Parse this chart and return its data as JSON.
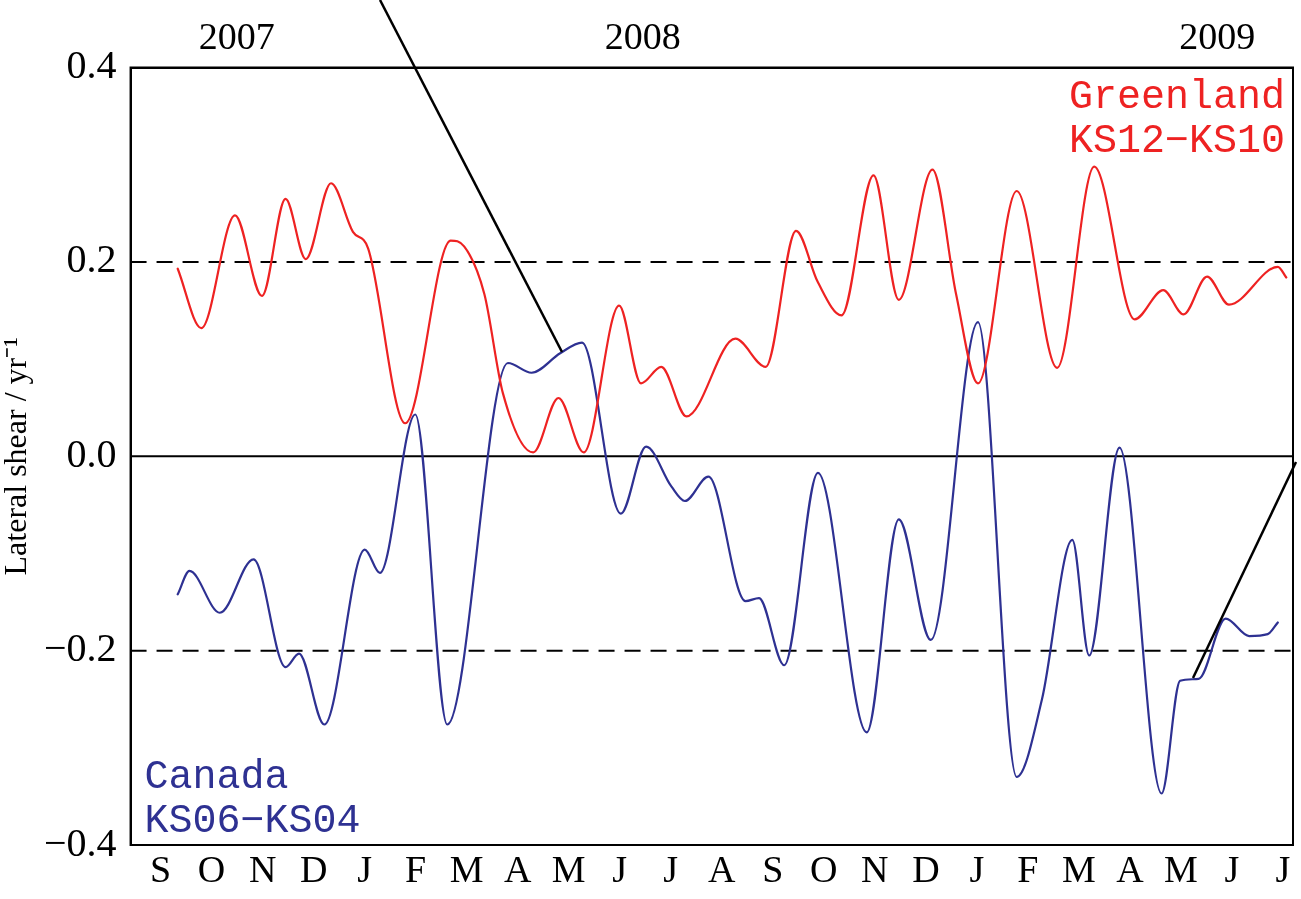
{
  "chart_data": {
    "type": "line",
    "ylabel": "Lateral shear / yr⁻¹",
    "legend": false,
    "grid": false,
    "line_style": "solid",
    "marker": "none",
    "xlim": [
      "2007-08-28",
      "2009-07-18"
    ],
    "ylim": [
      -0.4,
      0.4
    ],
    "yticks": [
      {
        "value": 0.4,
        "label": "0.4"
      },
      {
        "value": 0.2,
        "label": "0.2"
      },
      {
        "value": 0,
        "label": "0.0"
      },
      {
        "value": -0.2,
        "label": "−0.2"
      },
      {
        "value": -0.4,
        "label": "−0.4"
      }
    ],
    "xticks": [
      {
        "value": "2007-10-30",
        "label": "2007"
      },
      {
        "value": "2008-06-27",
        "label": "2008"
      },
      {
        "value": "2009-06-03",
        "label": "2009"
      }
    ],
    "annotations": [
      "S",
      "O",
      "N",
      "D",
      "J",
      "F",
      "M",
      "A",
      "M",
      "J",
      "J",
      "A",
      "S",
      "O",
      "N",
      "D",
      "J",
      "F",
      "M",
      "A",
      "M",
      "J",
      "J"
    ],
    "ref_lines": [
      {
        "axis": "y",
        "value": 0.2,
        "line_style": "dashed",
        "color": "#000000"
      },
      {
        "axis": "y",
        "value": 0,
        "line_style": "solid",
        "color": "#000000"
      },
      {
        "axis": "y",
        "value": -0.2,
        "line_style": "dashed",
        "color": "#000000"
      }
    ],
    "series": [
      {
        "name": "Greenland KS12−KS10",
        "color": "#ee2222",
        "x": [
          "2007-09-25",
          "2007-10-09",
          "2007-10-29",
          "2007-11-14",
          "2007-11-28",
          "2007-12-10",
          "2007-12-25",
          "2008-01-07",
          "2008-01-16",
          "2008-02-07",
          "2008-03-05",
          "2008-03-13",
          "2008-03-25",
          "2008-04-05",
          "2008-04-23",
          "2008-05-08",
          "2008-05-23",
          "2008-06-13",
          "2008-06-26",
          "2008-07-08",
          "2008-07-23",
          "2008-08-21",
          "2008-09-08",
          "2008-09-26",
          "2008-10-09",
          "2008-10-23",
          "2008-11-11",
          "2008-11-26",
          "2008-12-16",
          "2008-12-30",
          "2009-01-12",
          "2009-02-04",
          "2009-02-28",
          "2009-03-22",
          "2009-04-15",
          "2009-05-02",
          "2009-05-14",
          "2009-05-28",
          "2009-06-10",
          "2009-07-09",
          "2009-07-14"
        ],
        "values": [
          0.193,
          0.132,
          0.248,
          0.165,
          0.265,
          0.203,
          0.281,
          0.231,
          0.214,
          0.034,
          0.222,
          0.216,
          0.167,
          0.065,
          0.004,
          0.06,
          0.004,
          0.155,
          0.075,
          0.092,
          0.041,
          0.121,
          0.092,
          0.232,
          0.179,
          0.145,
          0.289,
          0.161,
          0.295,
          0.167,
          0.075,
          0.273,
          0.091,
          0.298,
          0.141,
          0.171,
          0.146,
          0.185,
          0.156,
          0.195,
          0.184
        ]
      },
      {
        "name": "Canada KS06−KS04",
        "color": "#2e3192",
        "x": [
          "2007-09-25",
          "2007-10-02",
          "2007-10-20",
          "2007-11-09",
          "2007-11-28",
          "2007-12-06",
          "2007-12-21",
          "2008-01-14",
          "2008-01-23",
          "2008-02-13",
          "2008-03-03",
          "2008-04-08",
          "2008-04-22",
          "2008-05-09",
          "2008-05-22",
          "2008-06-14",
          "2008-06-29",
          "2008-07-14",
          "2008-07-22",
          "2008-08-05",
          "2008-08-27",
          "2008-09-04",
          "2008-09-19",
          "2008-10-09",
          "2008-11-07",
          "2008-11-26",
          "2008-12-15",
          "2009-01-12",
          "2009-02-04",
          "2009-02-19",
          "2009-03-09",
          "2009-03-19",
          "2009-04-06",
          "2009-05-01",
          "2009-05-12",
          "2009-05-23",
          "2009-06-08",
          "2009-06-22",
          "2009-07-03",
          "2009-07-09"
        ],
        "values": [
          -0.142,
          -0.118,
          -0.161,
          -0.106,
          -0.217,
          -0.203,
          -0.276,
          -0.096,
          -0.12,
          0.043,
          -0.276,
          0.096,
          0.086,
          0.106,
          0.117,
          -0.059,
          0.01,
          -0.031,
          -0.046,
          -0.021,
          -0.149,
          -0.146,
          -0.215,
          -0.017,
          -0.284,
          -0.065,
          -0.189,
          0.138,
          -0.33,
          -0.25,
          -0.086,
          -0.205,
          0.009,
          -0.347,
          -0.231,
          -0.229,
          -0.167,
          -0.185,
          -0.183,
          -0.171
        ]
      }
    ]
  }
}
